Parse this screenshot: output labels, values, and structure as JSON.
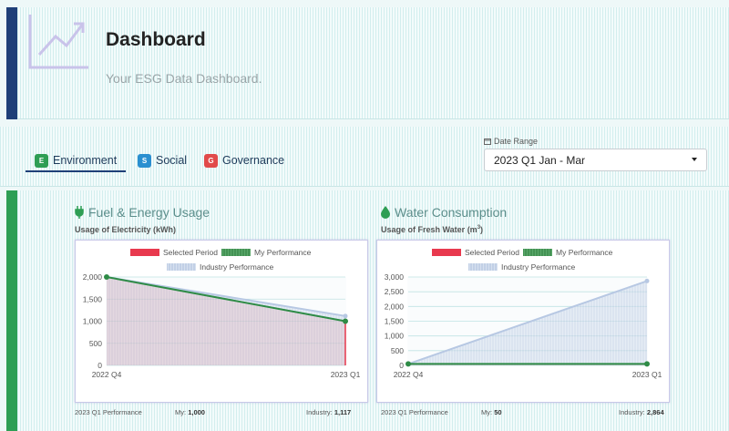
{
  "header": {
    "title": "Dashboard",
    "subtitle": "Your ESG Data Dashboard.",
    "accent_color": "#1f3f78"
  },
  "tabs": [
    {
      "badge": "E",
      "label": "Environment",
      "color": "#2e9e54",
      "active": true
    },
    {
      "badge": "S",
      "label": "Social",
      "color": "#2a8fd0",
      "active": false
    },
    {
      "badge": "G",
      "label": "Governance",
      "color": "#e14a4a",
      "active": false
    }
  ],
  "date_range": {
    "label": "Date Range",
    "value": "2023 Q1 Jan - Mar"
  },
  "legend": {
    "selected": "Selected Period",
    "my": "My Performance",
    "industry": "Industry Performance"
  },
  "colors": {
    "selected": "#e8394e",
    "my": "#2e8b46",
    "industry": "#b7c8e3",
    "content_accent": "#2e9e54"
  },
  "cards": [
    {
      "title": "Fuel & Energy Usage",
      "subtitle": "Usage of Electricity (kWh)",
      "icon": "plug-icon",
      "footer": {
        "period": "2023 Q1 Performance",
        "my_label": "My:",
        "my_value": "1,000",
        "industry_label": "Industry:",
        "industry_value": "1,117"
      }
    },
    {
      "title": "Water Consumption",
      "subtitle": "Usage of Fresh Water (m",
      "subtitle_sup": "3",
      "subtitle_end": ")",
      "icon": "water-drop-icon",
      "footer": {
        "period": "2023 Q1 Performance",
        "my_label": "My:",
        "my_value": "50",
        "industry_label": "Industry:",
        "industry_value": "2,864"
      }
    }
  ],
  "chart_data": [
    {
      "type": "line",
      "categories": [
        "2022 Q4",
        "2023 Q1"
      ],
      "series": [
        {
          "name": "My Performance",
          "values": [
            2000,
            1000
          ]
        },
        {
          "name": "Industry Performance",
          "values": [
            2000,
            1117
          ]
        }
      ],
      "selected_category": "2023 Q1",
      "yticks": [
        "0",
        "500",
        "1,000",
        "1,500",
        "2,000"
      ],
      "ylim": [
        0,
        2000
      ]
    },
    {
      "type": "line",
      "categories": [
        "2022 Q4",
        "2023 Q1"
      ],
      "series": [
        {
          "name": "My Performance",
          "values": [
            50,
            50
          ]
        },
        {
          "name": "Industry Performance",
          "values": [
            50,
            2864
          ]
        }
      ],
      "selected_category": "2023 Q1",
      "yticks": [
        "0",
        "500",
        "1,000",
        "1,500",
        "2,000",
        "2,500",
        "3,000"
      ],
      "ylim": [
        0,
        3000
      ]
    }
  ]
}
